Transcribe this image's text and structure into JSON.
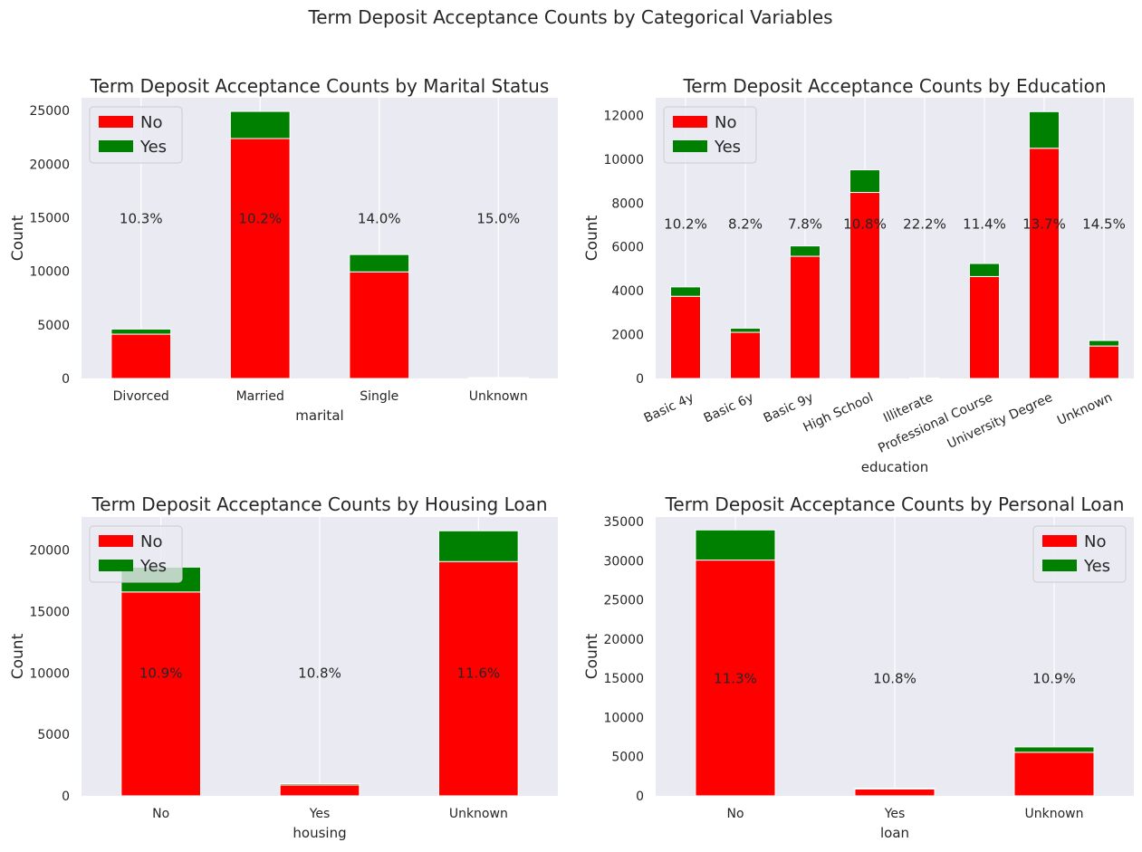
{
  "suptitle": "Term Deposit Acceptance Counts by Categorical Variables",
  "colors": {
    "no": "#ff0000",
    "yes": "#008000",
    "plot_bg": "#eaeaf2",
    "grid": "#ffffff"
  },
  "chart_data": [
    {
      "type": "bar",
      "stacked": true,
      "title": "Term Deposit Acceptance Counts by Marital Status",
      "xlabel": "marital",
      "ylabel": "Count",
      "categories": [
        "Divorced",
        "Married",
        "Single",
        "Unknown"
      ],
      "series": [
        {
          "name": "No",
          "values": [
            4136,
            22396,
            9948,
            68
          ]
        },
        {
          "name": "Yes",
          "values": [
            476,
            2532,
            1620,
            12
          ]
        }
      ],
      "percent_labels": [
        "10.3%",
        "10.2%",
        "14.0%",
        "15.0%"
      ],
      "ylim": [
        0,
        26200
      ],
      "yticks": [
        0,
        5000,
        10000,
        15000,
        20000,
        25000
      ],
      "legend": "upper-left",
      "grid": true
    },
    {
      "type": "bar",
      "stacked": true,
      "title": "Term Deposit Acceptance Counts by Education",
      "xlabel": "education",
      "ylabel": "Count",
      "categories": [
        "Basic 4y",
        "Basic 6y",
        "Basic 9y",
        "High School",
        "Illiterate",
        "Professional Course",
        "University Degree",
        "Unknown"
      ],
      "series": [
        {
          "name": "No",
          "values": [
            3748,
            2104,
            5572,
            8484,
            14,
            4648,
            10498,
            1480
          ]
        },
        {
          "name": "Yes",
          "values": [
            428,
            188,
            473,
            1031,
            4,
            595,
            1670,
            251
          ]
        }
      ],
      "percent_labels": [
        "10.2%",
        "8.2%",
        "7.8%",
        "10.8%",
        "22.2%",
        "11.4%",
        "13.7%",
        "14.5%"
      ],
      "ylim": [
        0,
        12800
      ],
      "yticks": [
        0,
        2000,
        4000,
        6000,
        8000,
        10000,
        12000
      ],
      "tick_rotation": -25,
      "legend": "upper-left",
      "grid": true
    },
    {
      "type": "bar",
      "stacked": true,
      "title": "Term Deposit Acceptance Counts by Housing Loan",
      "xlabel": "housing",
      "ylabel": "Count",
      "categories": [
        "No",
        "Yes",
        "Unknown"
      ],
      "series": [
        {
          "name": "No",
          "values": [
            16596,
            883,
            19069
          ]
        },
        {
          "name": "Yes",
          "values": [
            2026,
            107,
            2507
          ]
        }
      ],
      "percent_labels": [
        "10.9%",
        "10.8%",
        "11.6%"
      ],
      "ylim": [
        0,
        22700
      ],
      "yticks": [
        0,
        5000,
        10000,
        15000,
        20000
      ],
      "legend": "upper-left",
      "grid": true
    },
    {
      "type": "bar",
      "stacked": true,
      "title": "Term Deposit Acceptance Counts by Personal Loan",
      "xlabel": "loan",
      "ylabel": "Count",
      "categories": [
        "No",
        "Yes",
        "Unknown"
      ],
      "series": [
        {
          "name": "No",
          "values": [
            30100,
            883,
            5565
          ]
        },
        {
          "name": "Yes",
          "values": [
            3850,
            107,
            683
          ]
        }
      ],
      "percent_labels": [
        "11.3%",
        "10.8%",
        "10.9%"
      ],
      "ylim": [
        0,
        35600
      ],
      "yticks": [
        0,
        5000,
        10000,
        15000,
        20000,
        25000,
        30000,
        35000
      ],
      "legend": "upper-right",
      "grid": true
    }
  ]
}
